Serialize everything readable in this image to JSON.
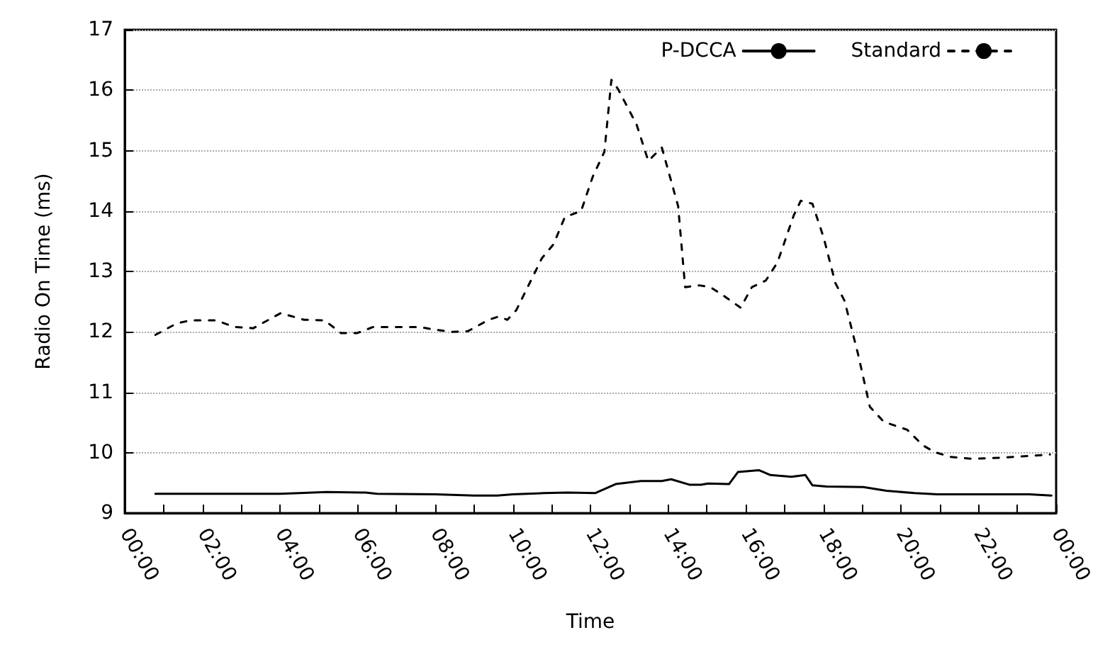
{
  "chart_data": {
    "type": "line",
    "xlabel": "Time",
    "ylabel": "Radio On Time (ms)",
    "xlim": [
      0,
      24
    ],
    "xticks": [
      {
        "value": 0,
        "label": "00:00"
      },
      {
        "value": 1,
        "label": null
      },
      {
        "value": 2,
        "label": "02:00"
      },
      {
        "value": 3,
        "label": null
      },
      {
        "value": 4,
        "label": "04:00"
      },
      {
        "value": 5,
        "label": null
      },
      {
        "value": 6,
        "label": "06:00"
      },
      {
        "value": 7,
        "label": null
      },
      {
        "value": 8,
        "label": "08:00"
      },
      {
        "value": 9,
        "label": null
      },
      {
        "value": 10,
        "label": "10:00"
      },
      {
        "value": 11,
        "label": null
      },
      {
        "value": 12,
        "label": "12:00"
      },
      {
        "value": 13,
        "label": null
      },
      {
        "value": 14,
        "label": "14:00"
      },
      {
        "value": 15,
        "label": null
      },
      {
        "value": 16,
        "label": "16:00"
      },
      {
        "value": 17,
        "label": null
      },
      {
        "value": 18,
        "label": "18:00"
      },
      {
        "value": 19,
        "label": null
      },
      {
        "value": 20,
        "label": "20:00"
      },
      {
        "value": 21,
        "label": null
      },
      {
        "value": 22,
        "label": "22:00"
      },
      {
        "value": 23,
        "label": null
      },
      {
        "value": 24,
        "label": "00:00"
      }
    ],
    "ylim": [
      9,
      17
    ],
    "yticks": [
      9,
      10,
      11,
      12,
      13,
      14,
      15,
      16,
      17
    ],
    "grid": "y",
    "legend": "top right",
    "marker": "none",
    "series": [
      {
        "name": "P-DCCA",
        "color": "#000000",
        "line_style": "solid",
        "x": [
          0.79,
          2.0,
          3.0,
          4.0,
          4.5,
          5.2,
          6.2,
          6.5,
          8.0,
          9.0,
          9.6,
          10.0,
          10.8,
          11.4,
          12.12,
          12.65,
          13.3,
          13.84,
          14.08,
          14.55,
          14.85,
          15.03,
          15.57,
          15.8,
          16.34,
          16.64,
          17.18,
          17.54,
          17.72,
          18.08,
          19.03,
          19.63,
          20.35,
          20.94,
          22.12,
          23.31,
          23.88
        ],
        "values": [
          9.32,
          9.32,
          9.32,
          9.32,
          9.33,
          9.35,
          9.34,
          9.32,
          9.31,
          9.29,
          9.29,
          9.31,
          9.33,
          9.34,
          9.33,
          9.48,
          9.53,
          9.53,
          9.56,
          9.47,
          9.47,
          9.49,
          9.48,
          9.68,
          9.71,
          9.63,
          9.6,
          9.63,
          9.46,
          9.44,
          9.43,
          9.37,
          9.33,
          9.31,
          9.31,
          9.31,
          9.29
        ]
      },
      {
        "name": "Standard",
        "color": "#000000",
        "line_style": "dashed",
        "x": [
          0.79,
          1.34,
          1.7,
          2.36,
          2.83,
          3.31,
          4.02,
          4.62,
          5.15,
          5.57,
          5.99,
          6.4,
          7.0,
          7.6,
          7.95,
          8.43,
          8.84,
          9.38,
          9.62,
          9.86,
          10.09,
          10.75,
          11.05,
          11.34,
          11.76,
          12.06,
          12.36,
          12.54,
          12.71,
          13.19,
          13.49,
          13.84,
          14.26,
          14.44,
          14.8,
          15.09,
          15.45,
          15.87,
          16.16,
          16.52,
          16.82,
          17.24,
          17.42,
          17.72,
          18.01,
          18.31,
          18.55,
          18.9,
          19.2,
          19.56,
          20.16,
          20.57,
          20.87,
          21.28,
          21.82,
          22.36,
          22.89,
          23.43,
          23.84
        ],
        "values": [
          11.95,
          12.14,
          12.19,
          12.19,
          12.08,
          12.06,
          12.31,
          12.2,
          12.19,
          11.98,
          11.98,
          12.08,
          12.08,
          12.08,
          12.04,
          12.0,
          12.01,
          12.2,
          12.25,
          12.2,
          12.36,
          13.22,
          13.45,
          13.9,
          14.0,
          14.57,
          14.98,
          16.17,
          16.02,
          15.43,
          14.83,
          15.05,
          14.08,
          12.74,
          12.77,
          12.74,
          12.59,
          12.4,
          12.74,
          12.85,
          13.15,
          13.93,
          14.17,
          14.12,
          13.56,
          12.81,
          12.51,
          11.62,
          10.76,
          10.51,
          10.38,
          10.12,
          10.01,
          9.93,
          9.9,
          9.91,
          9.93,
          9.95,
          9.97
        ]
      }
    ]
  }
}
